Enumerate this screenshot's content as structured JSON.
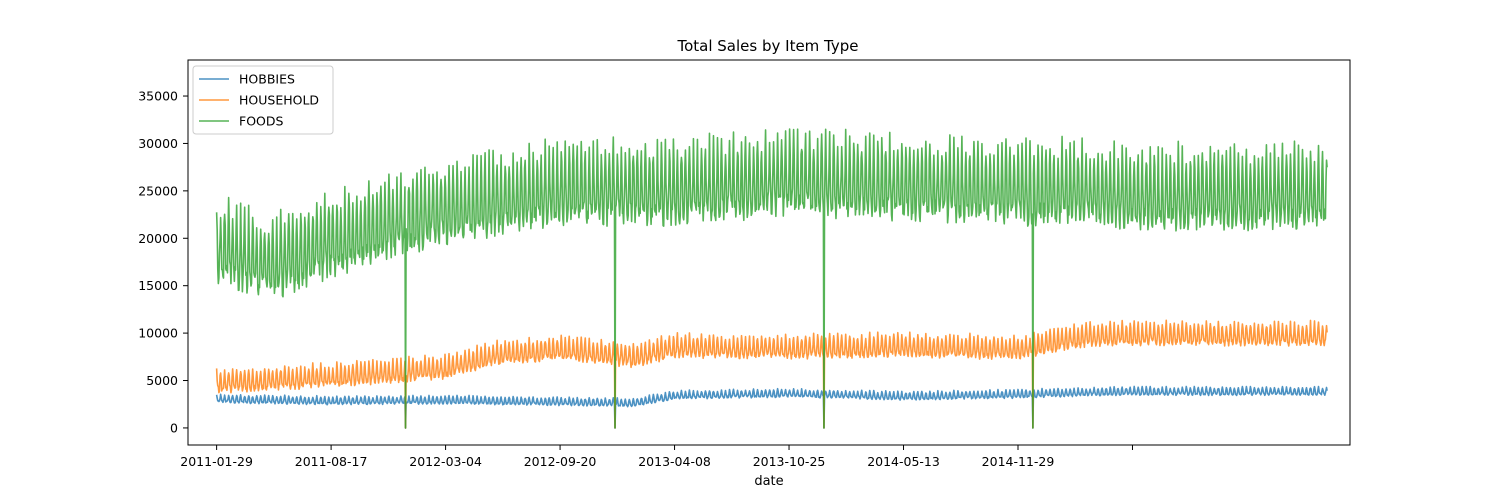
{
  "chart_data": {
    "type": "line",
    "title": "Total Sales by Item Type",
    "xlabel": "date",
    "ylabel": "",
    "x_range": [
      "2011-01-29",
      "2016-05-22"
    ],
    "x_axis_type": "date",
    "xlim": [
      "2010-12-10",
      "2016-07-01"
    ],
    "ylim": [
      -1800,
      38800
    ],
    "x_ticks": [
      "2011-01-29",
      "2011-08-17",
      "2012-03-04",
      "2012-09-20",
      "2013-04-08",
      "2013-10-25",
      "2014-05-13",
      "2014-11-29"
    ],
    "y_ticks": [
      0,
      5000,
      10000,
      15000,
      20000,
      25000,
      30000,
      35000
    ],
    "y_tick_labels": [
      "0",
      "5000",
      "10000",
      "15000",
      "20000",
      "25000",
      "30000",
      "35000"
    ],
    "legend_position": "upper-left",
    "grid": false,
    "weekly_period_days": 7,
    "christmas_zero_dates": [
      "2011-12-25",
      "2012-12-25",
      "2013-12-25",
      "2014-12-25"
    ],
    "series": [
      {
        "name": "HOBBIES",
        "color": "#1f77b4",
        "base_levels": [
          {
            "date": "2011-01-29",
            "value": 3000
          },
          {
            "date": "2011-08-17",
            "value": 2800
          },
          {
            "date": "2012-03-04",
            "value": 2900
          },
          {
            "date": "2012-09-20",
            "value": 2700
          },
          {
            "date": "2013-01-25",
            "value": 2600
          },
          {
            "date": "2013-04-08",
            "value": 3400
          },
          {
            "date": "2013-10-25",
            "value": 3600
          },
          {
            "date": "2014-05-13",
            "value": 3300
          },
          {
            "date": "2014-11-29",
            "value": 3500
          },
          {
            "date": "2015-03-15",
            "value": 3700
          },
          {
            "date": "2015-05-22",
            "value": 3800
          }
        ],
        "weekly_amplitude": 700
      },
      {
        "name": "HOUSEHOLD",
        "color": "#ff7f0e",
        "base_levels": [
          {
            "date": "2011-01-29",
            "value": 4700
          },
          {
            "date": "2011-08-17",
            "value": 5300
          },
          {
            "date": "2012-03-04",
            "value": 6200
          },
          {
            "date": "2012-06-01",
            "value": 7600
          },
          {
            "date": "2012-09-20",
            "value": 8200
          },
          {
            "date": "2013-01-25",
            "value": 7400
          },
          {
            "date": "2013-04-08",
            "value": 8400
          },
          {
            "date": "2013-10-25",
            "value": 8300
          },
          {
            "date": "2014-05-13",
            "value": 8500
          },
          {
            "date": "2014-11-29",
            "value": 8200
          },
          {
            "date": "2015-03-15",
            "value": 9500
          },
          {
            "date": "2015-05-22",
            "value": 9700
          }
        ],
        "weekly_amplitude": 2000
      },
      {
        "name": "FOODS",
        "color": "#2ca02c",
        "base_levels": [
          {
            "date": "2011-01-29",
            "value": 19000
          },
          {
            "date": "2011-05-01",
            "value": 17000
          },
          {
            "date": "2011-08-17",
            "value": 19500
          },
          {
            "date": "2012-03-04",
            "value": 23000
          },
          {
            "date": "2012-09-20",
            "value": 25000
          },
          {
            "date": "2013-04-08",
            "value": 25000
          },
          {
            "date": "2013-10-25",
            "value": 26000
          },
          {
            "date": "2014-05-13",
            "value": 25500
          },
          {
            "date": "2014-11-29",
            "value": 25000
          },
          {
            "date": "2015-03-15",
            "value": 25000
          },
          {
            "date": "2015-05-22",
            "value": 24500
          }
        ],
        "weekly_amplitude": 7000
      }
    ]
  }
}
